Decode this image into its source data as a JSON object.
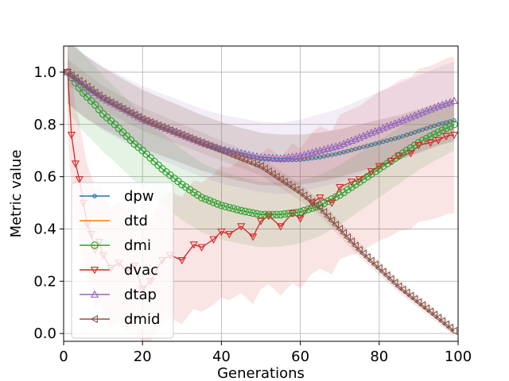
{
  "chart_data": {
    "type": "line",
    "title": "",
    "xlabel": "Generations",
    "ylabel": "Metric value",
    "xlim": [
      0,
      100
    ],
    "ylim": [
      -0.03,
      1.1
    ],
    "xticks": [
      0,
      20,
      40,
      60,
      80,
      100
    ],
    "yticks": [
      0.0,
      0.2,
      0.4,
      0.6,
      0.8,
      1.0
    ],
    "xtick_labels": [
      "0",
      "20",
      "40",
      "60",
      "80",
      "100"
    ],
    "ytick_labels": [
      "0.0",
      "0.2",
      "0.4",
      "0.6",
      "0.8",
      "1.0"
    ],
    "grid": true,
    "legend_position": "center-left",
    "series": [
      {
        "name": "dpw",
        "color": "#1f77b4",
        "marker": "dot",
        "x": [
          1,
          5,
          10,
          15,
          20,
          25,
          30,
          35,
          40,
          45,
          50,
          55,
          60,
          65,
          70,
          75,
          80,
          85,
          90,
          95,
          99
        ],
        "y": [
          1.0,
          0.95,
          0.9,
          0.86,
          0.82,
          0.79,
          0.76,
          0.73,
          0.705,
          0.685,
          0.668,
          0.663,
          0.665,
          0.675,
          0.69,
          0.71,
          0.73,
          0.75,
          0.775,
          0.8,
          0.815
        ],
        "band": [
          0.12,
          0.08
        ]
      },
      {
        "name": "dtd",
        "color": "#ff7f0e",
        "marker": "none",
        "x": [
          1,
          5,
          10,
          15,
          20,
          25,
          30,
          35,
          40,
          45,
          50,
          55,
          60,
          65,
          70,
          75,
          80,
          85,
          90,
          95,
          99
        ],
        "y": [
          1.0,
          0.95,
          0.9,
          0.86,
          0.82,
          0.79,
          0.76,
          0.73,
          0.705,
          0.685,
          0.668,
          0.663,
          0.665,
          0.675,
          0.69,
          0.71,
          0.73,
          0.75,
          0.775,
          0.8,
          0.815
        ],
        "band": [
          0.12,
          0.08
        ]
      },
      {
        "name": "dmi",
        "color": "#2ca02c",
        "marker": "circle",
        "x": [
          1,
          3,
          5,
          8,
          10,
          13,
          15,
          18,
          20,
          25,
          30,
          35,
          40,
          45,
          50,
          55,
          60,
          65,
          70,
          75,
          80,
          85,
          90,
          95,
          99
        ],
        "y": [
          1.0,
          0.96,
          0.92,
          0.875,
          0.84,
          0.8,
          0.77,
          0.725,
          0.7,
          0.63,
          0.57,
          0.52,
          0.49,
          0.47,
          0.455,
          0.455,
          0.465,
          0.49,
          0.53,
          0.58,
          0.63,
          0.68,
          0.73,
          0.77,
          0.8
        ],
        "band": [
          0.15,
          0.1
        ]
      },
      {
        "name": "dvac",
        "color": "#d62728",
        "marker": "triangle-down",
        "x": [
          1,
          2,
          3,
          4,
          5,
          6,
          7,
          8,
          9,
          10,
          12,
          14,
          16,
          18,
          20,
          22,
          25,
          27,
          30,
          33,
          35,
          38,
          40,
          42,
          45,
          48,
          50,
          52,
          55,
          58,
          60,
          63,
          65,
          68,
          70,
          73,
          75,
          78,
          80,
          83,
          85,
          88,
          90,
          93,
          95,
          97,
          99
        ],
        "y": [
          1.0,
          0.76,
          0.65,
          0.59,
          0.5,
          0.42,
          0.38,
          0.32,
          0.35,
          0.3,
          0.25,
          0.27,
          0.24,
          0.26,
          0.17,
          0.2,
          0.28,
          0.3,
          0.28,
          0.34,
          0.33,
          0.36,
          0.39,
          0.38,
          0.41,
          0.37,
          0.43,
          0.45,
          0.41,
          0.46,
          0.44,
          0.5,
          0.52,
          0.5,
          0.56,
          0.58,
          0.59,
          0.62,
          0.64,
          0.66,
          0.68,
          0.69,
          0.72,
          0.73,
          0.74,
          0.755,
          0.76
        ],
        "band": [
          0.22,
          0.3
        ]
      },
      {
        "name": "dtap",
        "color": "#9467bd",
        "marker": "triangle-up",
        "x": [
          1,
          5,
          10,
          15,
          20,
          25,
          30,
          35,
          40,
          45,
          50,
          55,
          60,
          65,
          70,
          75,
          80,
          85,
          90,
          95,
          99
        ],
        "y": [
          1.0,
          0.95,
          0.9,
          0.86,
          0.82,
          0.79,
          0.76,
          0.73,
          0.705,
          0.69,
          0.675,
          0.67,
          0.68,
          0.7,
          0.72,
          0.75,
          0.78,
          0.81,
          0.84,
          0.87,
          0.89
        ],
        "band": [
          0.12,
          0.15
        ]
      },
      {
        "name": "dmid",
        "color": "#8c564b",
        "marker": "triangle-left",
        "x": [
          1,
          10,
          20,
          30,
          40,
          50,
          55,
          60,
          65,
          70,
          75,
          80,
          85,
          90,
          95,
          99
        ],
        "y": [
          1.0,
          0.9,
          0.82,
          0.76,
          0.7,
          0.64,
          0.59,
          0.54,
          0.48,
          0.4,
          0.32,
          0.25,
          0.18,
          0.12,
          0.06,
          0.01
        ],
        "band": [
          0.05,
          0.02
        ]
      }
    ]
  }
}
